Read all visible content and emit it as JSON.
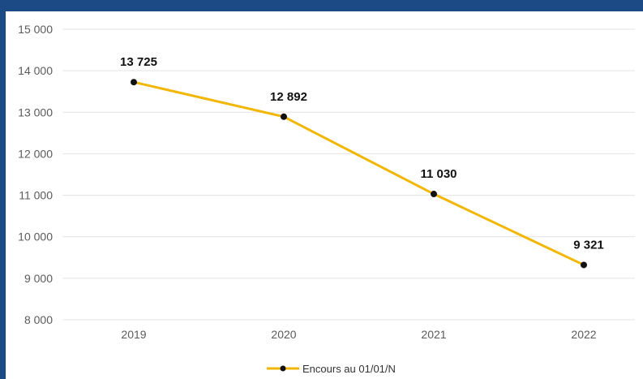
{
  "chart_data": {
    "type": "line",
    "categories": [
      "2019",
      "2020",
      "2021",
      "2022"
    ],
    "series": [
      {
        "name": "Encours au 01/01/N",
        "values": [
          13725,
          12892,
          11030,
          9321
        ],
        "data_labels": [
          "13 725",
          "12 892",
          "11 030",
          "9 321"
        ],
        "color": "#f2b705"
      }
    ],
    "ylim": [
      8000,
      15000
    ],
    "yticks": [
      15000,
      14000,
      13000,
      12000,
      11000,
      10000,
      9000,
      8000
    ],
    "ytick_labels": [
      "15 000",
      "14 000",
      "13 000",
      "12 000",
      "11 000",
      "10 000",
      "9 000",
      "8 000"
    ],
    "grid": true,
    "legend_position": "bottom",
    "colors": {
      "background_frame": "#1c4a84",
      "gridline": "#e3e3e3",
      "marker": "#111111"
    }
  }
}
